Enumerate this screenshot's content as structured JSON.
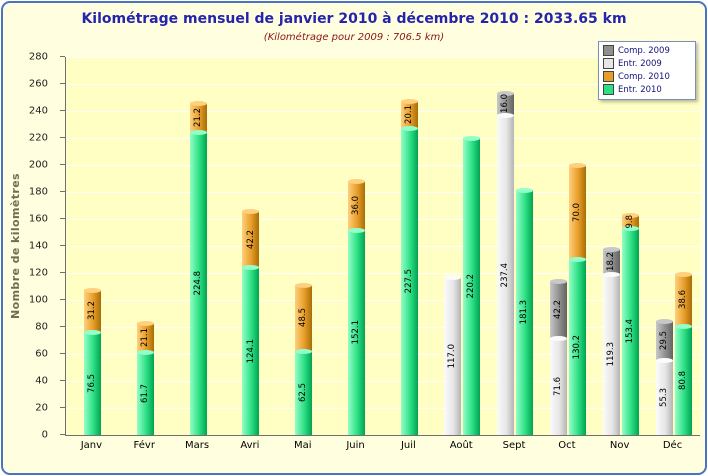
{
  "chart": {
    "title": "Kilométrage mensuel de janvier 2010 à décembre 2010 : 2033.65 km",
    "subtitle": "(Kilométrage pour 2009 : 706.5 km)",
    "y_axis_label": "Nombre de kilomètres"
  },
  "colors": {
    "frame_border": "#4a73c3",
    "outer_background": "#ffffdf",
    "plot_background": "#ffffc4",
    "title": "#2424ad",
    "subtitle": "#8b1515",
    "y_axis_title": "#6e6e52",
    "gridline": "#ffffff",
    "axis": "#707070"
  },
  "chart_data": {
    "type": "bar",
    "stacked": true,
    "title": "Kilométrage mensuel de janvier 2010 à décembre 2010 : 2033.65 km",
    "subtitle": "(Kilométrage pour 2009 : 706.5 km)",
    "ylabel": "Nombre de kilomètres",
    "xlabel": "",
    "ylim": [
      0,
      280
    ],
    "ytick_step": 20,
    "grid": true,
    "legend_position": "top-right",
    "categories": [
      "Janv",
      "Févr",
      "Mars",
      "Avri",
      "Mai",
      "Juin",
      "Juil",
      "Août",
      "Sept",
      "Oct",
      "Nov",
      "Déc"
    ],
    "series": [
      {
        "name": "Comp. 2009",
        "color": "#8f8f8f",
        "color_light": "#c8c8c8",
        "color_dark": "#636363",
        "values": [
          0,
          0,
          0,
          0,
          0,
          0,
          0,
          0,
          16.0,
          42.2,
          18.2,
          29.5
        ]
      },
      {
        "name": "Entr. 2009",
        "color": "#e6e6e6",
        "color_light": "#fbfbfb",
        "color_dark": "#b4b4b4",
        "values": [
          0,
          0,
          0,
          0,
          0,
          0,
          0,
          117.0,
          237.4,
          71.6,
          119.3,
          55.3
        ]
      },
      {
        "name": "Comp. 2010",
        "color": "#e79d28",
        "color_light": "#ffd07e",
        "color_dark": "#a86d08",
        "values": [
          31.2,
          21.1,
          21.2,
          42.2,
          48.5,
          36.0,
          20.1,
          0,
          0,
          70.0,
          9.8,
          38.6
        ]
      },
      {
        "name": "Entr. 2010",
        "color": "#2ddf84",
        "color_light": "#93ffc8",
        "color_dark": "#00a352",
        "values": [
          76.5,
          61.7,
          224.8,
          124.1,
          62.5,
          152.1,
          227.5,
          220.2,
          181.3,
          130.2,
          153.4,
          80.8
        ]
      }
    ],
    "bar_groups": [
      {
        "name": "2009",
        "stack": [
          "Entr. 2009",
          "Comp. 2009"
        ]
      },
      {
        "name": "2010",
        "stack": [
          "Entr. 2010",
          "Comp. 2010"
        ]
      }
    ]
  }
}
